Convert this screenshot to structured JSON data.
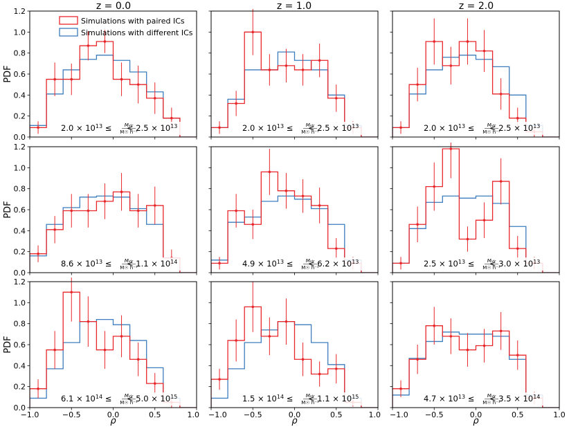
{
  "legend": {
    "paired": "Simulations with paired ICs",
    "different": "Simulations with different ICs"
  },
  "column_titles": [
    "z = 0.0",
    "z = 1.0",
    "z = 2.0"
  ],
  "colors": {
    "paired": "#e8262a",
    "different": "#3b7dbd",
    "axis": "#000000"
  },
  "chart_data": {
    "type": "histogram-grid",
    "xlabel": "ρ",
    "ylabel": "PDF",
    "xlim": [
      -1.0,
      1.0
    ],
    "ylim": [
      0,
      1.2
    ],
    "xticks": [
      "−1.0",
      "−0.5",
      "0.0",
      "0.5",
      "1.0"
    ],
    "yticks": [
      "0.0",
      "0.2",
      "0.4",
      "0.6",
      "0.8",
      "1.0",
      "1.2"
    ],
    "bin_edges": [
      -1.0,
      -0.8,
      -0.6,
      -0.4,
      -0.2,
      0.0,
      0.2,
      0.4,
      0.6,
      0.8,
      1.0
    ],
    "panels": [
      {
        "row": 0,
        "col": 0,
        "mass_range": {
          "lo": "2.0 × 10",
          "lo_exp": "13",
          "hi": "2.5 × 10",
          "hi_exp": "13"
        },
        "paired": [
          0.09,
          0.55,
          0.55,
          0.87,
          0.91,
          0.55,
          0.5,
          0.37,
          0.18,
          0.0
        ],
        "paired_err": [
          0.06,
          0.16,
          0.15,
          0.14,
          0.11,
          0.16,
          0.18,
          0.15,
          0.1,
          0.0
        ],
        "different": [
          0.11,
          0.41,
          0.64,
          0.74,
          0.78,
          0.73,
          0.62,
          0.43,
          0.18,
          0.0
        ]
      },
      {
        "row": 0,
        "col": 1,
        "mass_range": {
          "lo": "2.0 × 10",
          "lo_exp": "13",
          "hi": "2.5 × 10",
          "hi_exp": "13"
        },
        "paired": [
          0.09,
          0.32,
          1.0,
          0.64,
          0.68,
          0.64,
          0.73,
          0.37,
          0.09,
          0.0
        ],
        "paired_err": [
          0.06,
          0.12,
          0.22,
          0.15,
          0.16,
          0.15,
          0.16,
          0.13,
          0.06,
          0.0
        ],
        "different": [
          0.09,
          0.36,
          0.64,
          0.64,
          0.81,
          0.73,
          0.64,
          0.4,
          0.11,
          0.0
        ]
      },
      {
        "row": 0,
        "col": 2,
        "mass_range": {
          "lo": "2.0 × 10",
          "lo_exp": "13",
          "hi": "2.5 × 10",
          "hi_exp": "13"
        },
        "paired": [
          0.09,
          0.5,
          0.91,
          0.68,
          0.91,
          0.82,
          0.41,
          0.18,
          0.05,
          0.0
        ],
        "paired_err": [
          0.06,
          0.16,
          0.22,
          0.18,
          0.22,
          0.2,
          0.15,
          0.1,
          0.05,
          0.0
        ],
        "different": [
          0.09,
          0.41,
          0.64,
          0.76,
          0.78,
          0.74,
          0.67,
          0.4,
          0.11,
          0.0
        ]
      },
      {
        "row": 1,
        "col": 0,
        "mass_range": {
          "lo": "8.6 × 10",
          "lo_exp": "13",
          "hi": "1.1 × 10",
          "hi_exp": "14"
        },
        "paired": [
          0.18,
          0.41,
          0.59,
          0.59,
          0.68,
          0.77,
          0.59,
          0.64,
          0.14,
          0.0
        ],
        "paired_err": [
          0.08,
          0.13,
          0.16,
          0.16,
          0.17,
          0.18,
          0.16,
          0.18,
          0.08,
          0.0
        ],
        "different": [
          0.16,
          0.46,
          0.62,
          0.72,
          0.73,
          0.72,
          0.61,
          0.46,
          0.14,
          0.0
        ]
      },
      {
        "row": 1,
        "col": 1,
        "mass_range": {
          "lo": "4.9 × 10",
          "lo_exp": "13",
          "hi": "6.2 × 10",
          "hi_exp": "13"
        },
        "paired": [
          0.09,
          0.59,
          0.46,
          0.96,
          0.78,
          0.73,
          0.64,
          0.23,
          0.09,
          0.0
        ],
        "paired_err": [
          0.06,
          0.16,
          0.14,
          0.22,
          0.17,
          0.16,
          0.17,
          0.1,
          0.06,
          0.0
        ],
        "different": [
          0.12,
          0.48,
          0.53,
          0.68,
          0.73,
          0.7,
          0.61,
          0.46,
          0.12,
          0.0
        ]
      },
      {
        "row": 1,
        "col": 2,
        "mass_range": {
          "lo": "2.5 × 10",
          "lo_exp": "13",
          "hi": "3.0 × 10",
          "hi_exp": "13"
        },
        "paired": [
          0.09,
          0.46,
          0.82,
          1.18,
          0.32,
          0.5,
          0.87,
          0.23,
          0.09,
          0.0
        ],
        "paired_err": [
          0.06,
          0.17,
          0.23,
          0.28,
          0.12,
          0.17,
          0.22,
          0.12,
          0.06,
          0.0
        ],
        "different": [
          0.09,
          0.42,
          0.67,
          0.73,
          0.71,
          0.73,
          0.66,
          0.44,
          0.09,
          0.0
        ]
      },
      {
        "row": 2,
        "col": 0,
        "mass_range": {
          "lo": "6.1 × 10",
          "lo_exp": "14",
          "hi": "5.0 × 10",
          "hi_exp": "15"
        },
        "paired": [
          0.18,
          0.55,
          1.1,
          0.82,
          0.55,
          0.68,
          0.46,
          0.23,
          0.05,
          0.0
        ],
        "paired_err": [
          0.09,
          0.18,
          0.28,
          0.24,
          0.18,
          0.2,
          0.16,
          0.1,
          0.05,
          0.0
        ],
        "different": [
          0.09,
          0.37,
          0.62,
          0.82,
          0.84,
          0.79,
          0.64,
          0.38,
          0.09,
          0.0
        ]
      },
      {
        "row": 2,
        "col": 1,
        "mass_range": {
          "lo": "1.5 × 10",
          "lo_exp": "14",
          "hi": "1.1 × 10",
          "hi_exp": "15"
        },
        "paired": [
          0.27,
          0.64,
          0.96,
          0.68,
          0.82,
          0.46,
          0.32,
          0.37,
          0.05,
          0.0
        ],
        "paired_err": [
          0.1,
          0.2,
          0.24,
          0.18,
          0.22,
          0.16,
          0.12,
          0.14,
          0.04,
          0.0
        ],
        "different": [
          0.09,
          0.37,
          0.62,
          0.74,
          0.82,
          0.79,
          0.62,
          0.41,
          0.09,
          0.0
        ]
      },
      {
        "row": 2,
        "col": 2,
        "mass_range": {
          "lo": "4.7 × 10",
          "lo_exp": "13",
          "hi": "3.5 × 10",
          "hi_exp": "14"
        },
        "paired": [
          0.18,
          0.46,
          0.78,
          0.68,
          0.55,
          0.59,
          0.73,
          0.5,
          0.09,
          0.0
        ],
        "paired_err": [
          0.08,
          0.14,
          0.18,
          0.17,
          0.16,
          0.16,
          0.18,
          0.14,
          0.06,
          0.0
        ],
        "different": [
          0.12,
          0.47,
          0.63,
          0.72,
          0.7,
          0.7,
          0.68,
          0.46,
          0.12,
          0.0
        ]
      }
    ]
  }
}
